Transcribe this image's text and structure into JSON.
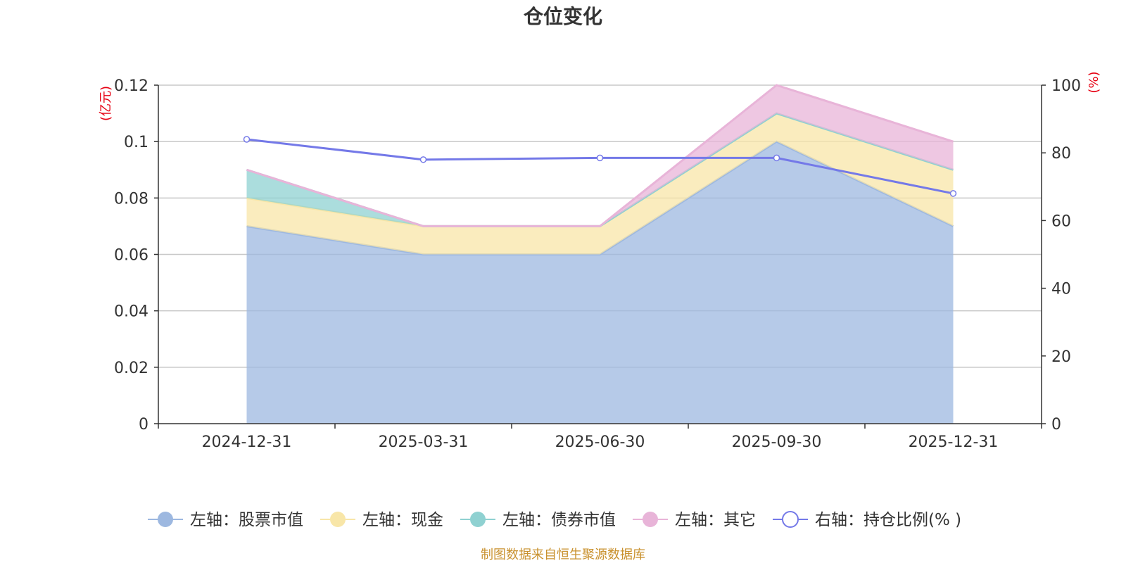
{
  "chart_data": {
    "type": "area",
    "title": "仓位变化",
    "categories": [
      "2024-12-31",
      "2025-03-31",
      "2025-06-30",
      "2025-09-30",
      "2025-12-31"
    ],
    "left_axis": {
      "unit": "(亿元)",
      "range": [
        0,
        0.12
      ],
      "ticks": [
        "0",
        "0.02",
        "0.04",
        "0.06",
        "0.08",
        "0.1",
        "0.12"
      ]
    },
    "right_axis": {
      "unit": "(%)",
      "range": [
        0,
        100
      ],
      "ticks": [
        "0",
        "20",
        "40",
        "60",
        "80",
        "100"
      ]
    },
    "series": [
      {
        "name": "左轴：股票市值",
        "axis": "left",
        "type": "area",
        "stacked": true,
        "color": "#9db8e0",
        "values": [
          0.07,
          0.06,
          0.06,
          0.1,
          0.07
        ]
      },
      {
        "name": "左轴：现金",
        "axis": "left",
        "type": "area",
        "stacked": true,
        "color": "#f8e6a8",
        "values": [
          0.01,
          0.01,
          0.01,
          0.01,
          0.02
        ]
      },
      {
        "name": "左轴：债券市值",
        "axis": "left",
        "type": "area",
        "stacked": true,
        "color": "#8fd1d1",
        "values": [
          0.01,
          0.0,
          0.0,
          0.0,
          0.0
        ]
      },
      {
        "name": "左轴：其它",
        "axis": "left",
        "type": "area",
        "stacked": true,
        "color": "#e8b4d8",
        "values": [
          0.0,
          0.0,
          0.0,
          0.01,
          0.01
        ]
      },
      {
        "name": "右轴：持仓比例(% )",
        "axis": "right",
        "type": "line",
        "color": "#7479e8",
        "values": [
          84,
          78,
          78.5,
          78.5,
          68
        ]
      }
    ],
    "source": "制图数据来自恒生聚源数据库"
  }
}
